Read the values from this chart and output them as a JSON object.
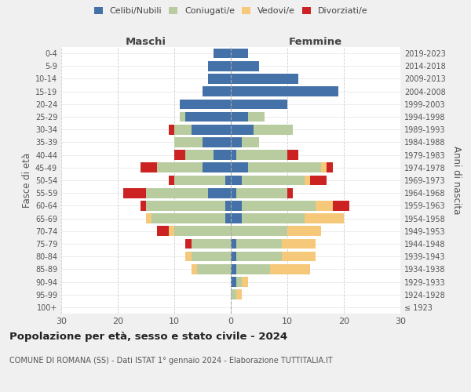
{
  "age_groups": [
    "100+",
    "95-99",
    "90-94",
    "85-89",
    "80-84",
    "75-79",
    "70-74",
    "65-69",
    "60-64",
    "55-59",
    "50-54",
    "45-49",
    "40-44",
    "35-39",
    "30-34",
    "25-29",
    "20-24",
    "15-19",
    "10-14",
    "5-9",
    "0-4"
  ],
  "birth_years": [
    "≤ 1923",
    "1924-1928",
    "1929-1933",
    "1934-1938",
    "1939-1943",
    "1944-1948",
    "1949-1953",
    "1954-1958",
    "1959-1963",
    "1964-1968",
    "1969-1973",
    "1974-1978",
    "1979-1983",
    "1984-1988",
    "1989-1993",
    "1994-1998",
    "1999-2003",
    "2004-2008",
    "2009-2013",
    "2014-2018",
    "2019-2023"
  ],
  "male": {
    "celibi": [
      0,
      0,
      0,
      0,
      0,
      0,
      0,
      1,
      1,
      4,
      1,
      5,
      3,
      5,
      7,
      8,
      9,
      5,
      4,
      4,
      3
    ],
    "coniugati": [
      0,
      0,
      0,
      6,
      7,
      7,
      10,
      13,
      14,
      11,
      9,
      8,
      5,
      5,
      3,
      1,
      0,
      0,
      0,
      0,
      0
    ],
    "vedovi": [
      0,
      0,
      0,
      1,
      1,
      0,
      1,
      1,
      0,
      0,
      0,
      0,
      0,
      0,
      0,
      0,
      0,
      0,
      0,
      0,
      0
    ],
    "divorziati": [
      0,
      0,
      0,
      0,
      0,
      1,
      2,
      0,
      1,
      4,
      1,
      3,
      2,
      0,
      1,
      0,
      0,
      0,
      0,
      0,
      0
    ]
  },
  "female": {
    "nubili": [
      0,
      0,
      1,
      1,
      1,
      1,
      0,
      2,
      2,
      1,
      2,
      3,
      1,
      2,
      4,
      3,
      10,
      19,
      12,
      5,
      3
    ],
    "coniugate": [
      0,
      1,
      1,
      6,
      8,
      8,
      10,
      11,
      13,
      9,
      11,
      13,
      9,
      3,
      7,
      3,
      0,
      0,
      0,
      0,
      0
    ],
    "vedove": [
      0,
      1,
      1,
      7,
      6,
      6,
      6,
      7,
      3,
      0,
      1,
      1,
      0,
      0,
      0,
      0,
      0,
      0,
      0,
      0,
      0
    ],
    "divorziate": [
      0,
      0,
      0,
      0,
      0,
      0,
      0,
      0,
      3,
      1,
      3,
      1,
      2,
      0,
      0,
      0,
      0,
      0,
      0,
      0,
      0
    ]
  },
  "colors": {
    "celibi": "#4472a8",
    "coniugati": "#b8cca0",
    "vedovi": "#f5c87a",
    "divorziati": "#cc2222"
  },
  "title": "Popolazione per età, sesso e stato civile - 2024",
  "subtitle": "COMUNE DI ROMANA (SS) - Dati ISTAT 1° gennaio 2024 - Elaborazione TUTTITALIA.IT",
  "xlabel_left": "Maschi",
  "xlabel_right": "Femmine",
  "ylabel_left": "Fasce di età",
  "ylabel_right": "Anni di nascita",
  "xlim": 30,
  "legend_labels": [
    "Celibi/Nubili",
    "Coniugati/e",
    "Vedovi/e",
    "Divorziati/e"
  ],
  "bg_color": "#f0f0f0",
  "plot_bg": "#ffffff"
}
